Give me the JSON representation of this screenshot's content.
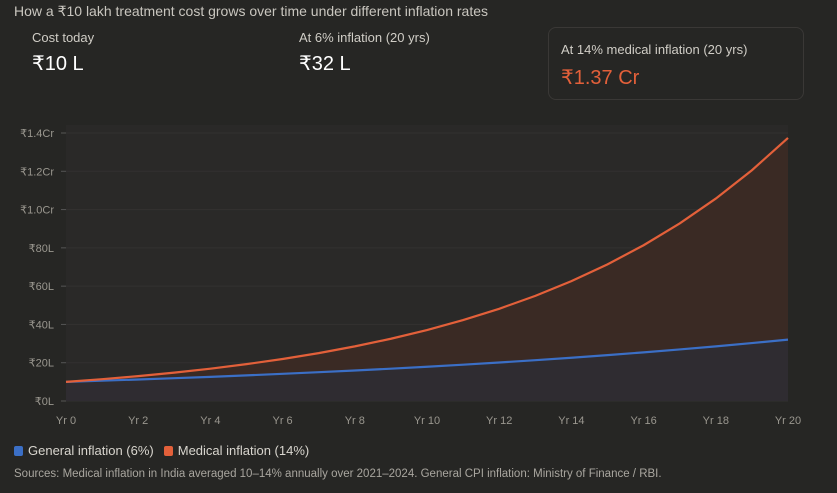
{
  "title": "How a ₹10 lakh treatment cost grows over time under different inflation rates",
  "stats": [
    {
      "label": "Cost today",
      "value": "₹10 L"
    },
    {
      "label": "At 6% inflation (20 yrs)",
      "value": "₹32 L"
    },
    {
      "label": "At 14% medical inflation (20 yrs)",
      "value": "₹1.37 Cr"
    }
  ],
  "source": "Sources: Medical inflation in India averaged 10–14% annually over 2021–2024. General CPI inflation: Ministry of Finance / RBI.",
  "chart_data": {
    "type": "area",
    "x": [
      0,
      1,
      2,
      3,
      4,
      5,
      6,
      7,
      8,
      9,
      10,
      11,
      12,
      13,
      14,
      15,
      16,
      17,
      18,
      19,
      20
    ],
    "xticks": [
      0,
      2,
      4,
      6,
      8,
      10,
      12,
      14,
      16,
      18,
      20
    ],
    "xtick_labels": [
      "Yr 0",
      "Yr 2",
      "Yr 4",
      "Yr 6",
      "Yr 8",
      "Yr 10",
      "Yr 12",
      "Yr 14",
      "Yr 16",
      "Yr 18",
      "Yr 20"
    ],
    "yticks": [
      0,
      20,
      40,
      60,
      80,
      100,
      120,
      140
    ],
    "ytick_labels": [
      "₹0L",
      "₹20L",
      "₹40L",
      "₹60L",
      "₹80L",
      "₹1.0Cr",
      "₹1.2Cr",
      "₹1.4Cr"
    ],
    "ylim": [
      0,
      140
    ],
    "yunit": "lakh",
    "series": [
      {
        "name": "General inflation (6%)",
        "color": "#3b6fc6",
        "values": [
          10,
          10.6,
          11.24,
          11.91,
          12.62,
          13.38,
          14.19,
          15.04,
          15.94,
          16.89,
          17.91,
          18.98,
          20.12,
          21.33,
          22.61,
          23.97,
          25.4,
          26.93,
          28.54,
          30.26,
          32.07
        ]
      },
      {
        "name": "Medical inflation (14%)",
        "color": "#e3603a",
        "values": [
          10,
          11.4,
          13,
          14.81,
          16.89,
          19.25,
          21.95,
          25.02,
          28.53,
          32.52,
          37.07,
          42.26,
          48.18,
          54.92,
          62.61,
          71.38,
          81.37,
          92.76,
          105.75,
          120.55,
          137.43
        ]
      }
    ],
    "legend": "bottom-left"
  },
  "colors": {
    "accent": "#e3603a"
  }
}
